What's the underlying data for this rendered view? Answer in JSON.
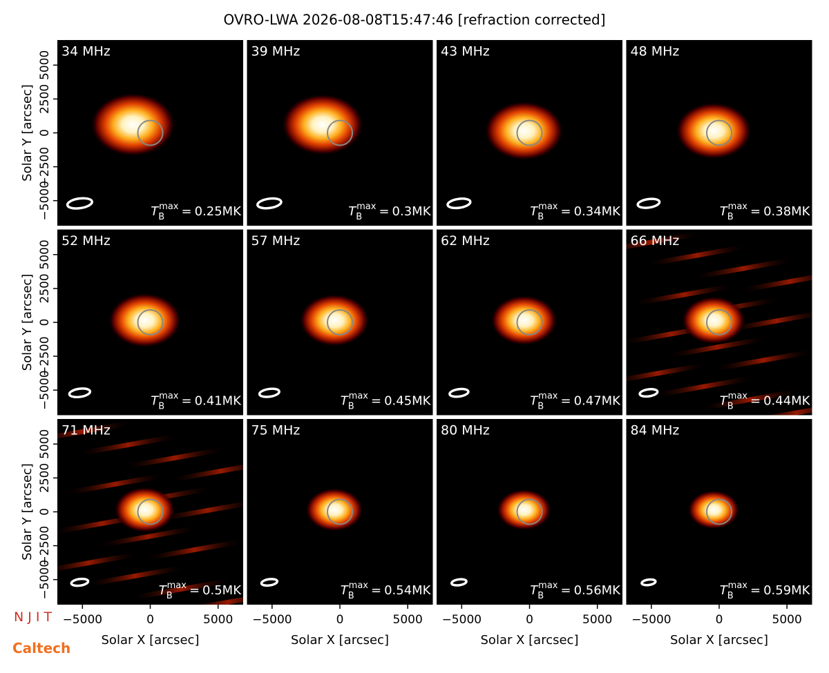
{
  "chart_data": {
    "type": "image-grid",
    "title": "OVRO-LWA 2026-08-08T15:47:46 [refraction corrected]",
    "x_label": "Solar X [arcsec]",
    "y_label": "Solar Y [arcsec]",
    "xlim": [
      -6850,
      6850
    ],
    "ylim": [
      -6850,
      6850
    ],
    "xticks": [
      {
        "value": -5000,
        "label": "−5000"
      },
      0,
      5000
    ],
    "yticks": [
      {
        "value": -5000,
        "label": "−5000"
      },
      {
        "value": -2500,
        "label": "−2500"
      },
      0,
      2500,
      5000
    ],
    "tmax_symbol": {
      "base": "T",
      "sub": "B",
      "sup": "max",
      "eq": "="
    },
    "panels": [
      {
        "freq": "34 MHz",
        "tmax": "0.25MK"
      },
      {
        "freq": "39 MHz",
        "tmax": "0.3MK"
      },
      {
        "freq": "43 MHz",
        "tmax": "0.34MK"
      },
      {
        "freq": "48 MHz",
        "tmax": "0.38MK"
      },
      {
        "freq": "52 MHz",
        "tmax": "0.41MK"
      },
      {
        "freq": "57 MHz",
        "tmax": "0.45MK"
      },
      {
        "freq": "62 MHz",
        "tmax": "0.47MK"
      },
      {
        "freq": "66 MHz",
        "tmax": "0.44MK"
      },
      {
        "freq": "71 MHz",
        "tmax": "0.5MK"
      },
      {
        "freq": "75 MHz",
        "tmax": "0.54MK"
      },
      {
        "freq": "80 MHz",
        "tmax": "0.56MK"
      },
      {
        "freq": "84 MHz",
        "tmax": "0.59MK"
      }
    ],
    "logos": [
      "N J I T",
      "Caltech"
    ]
  }
}
